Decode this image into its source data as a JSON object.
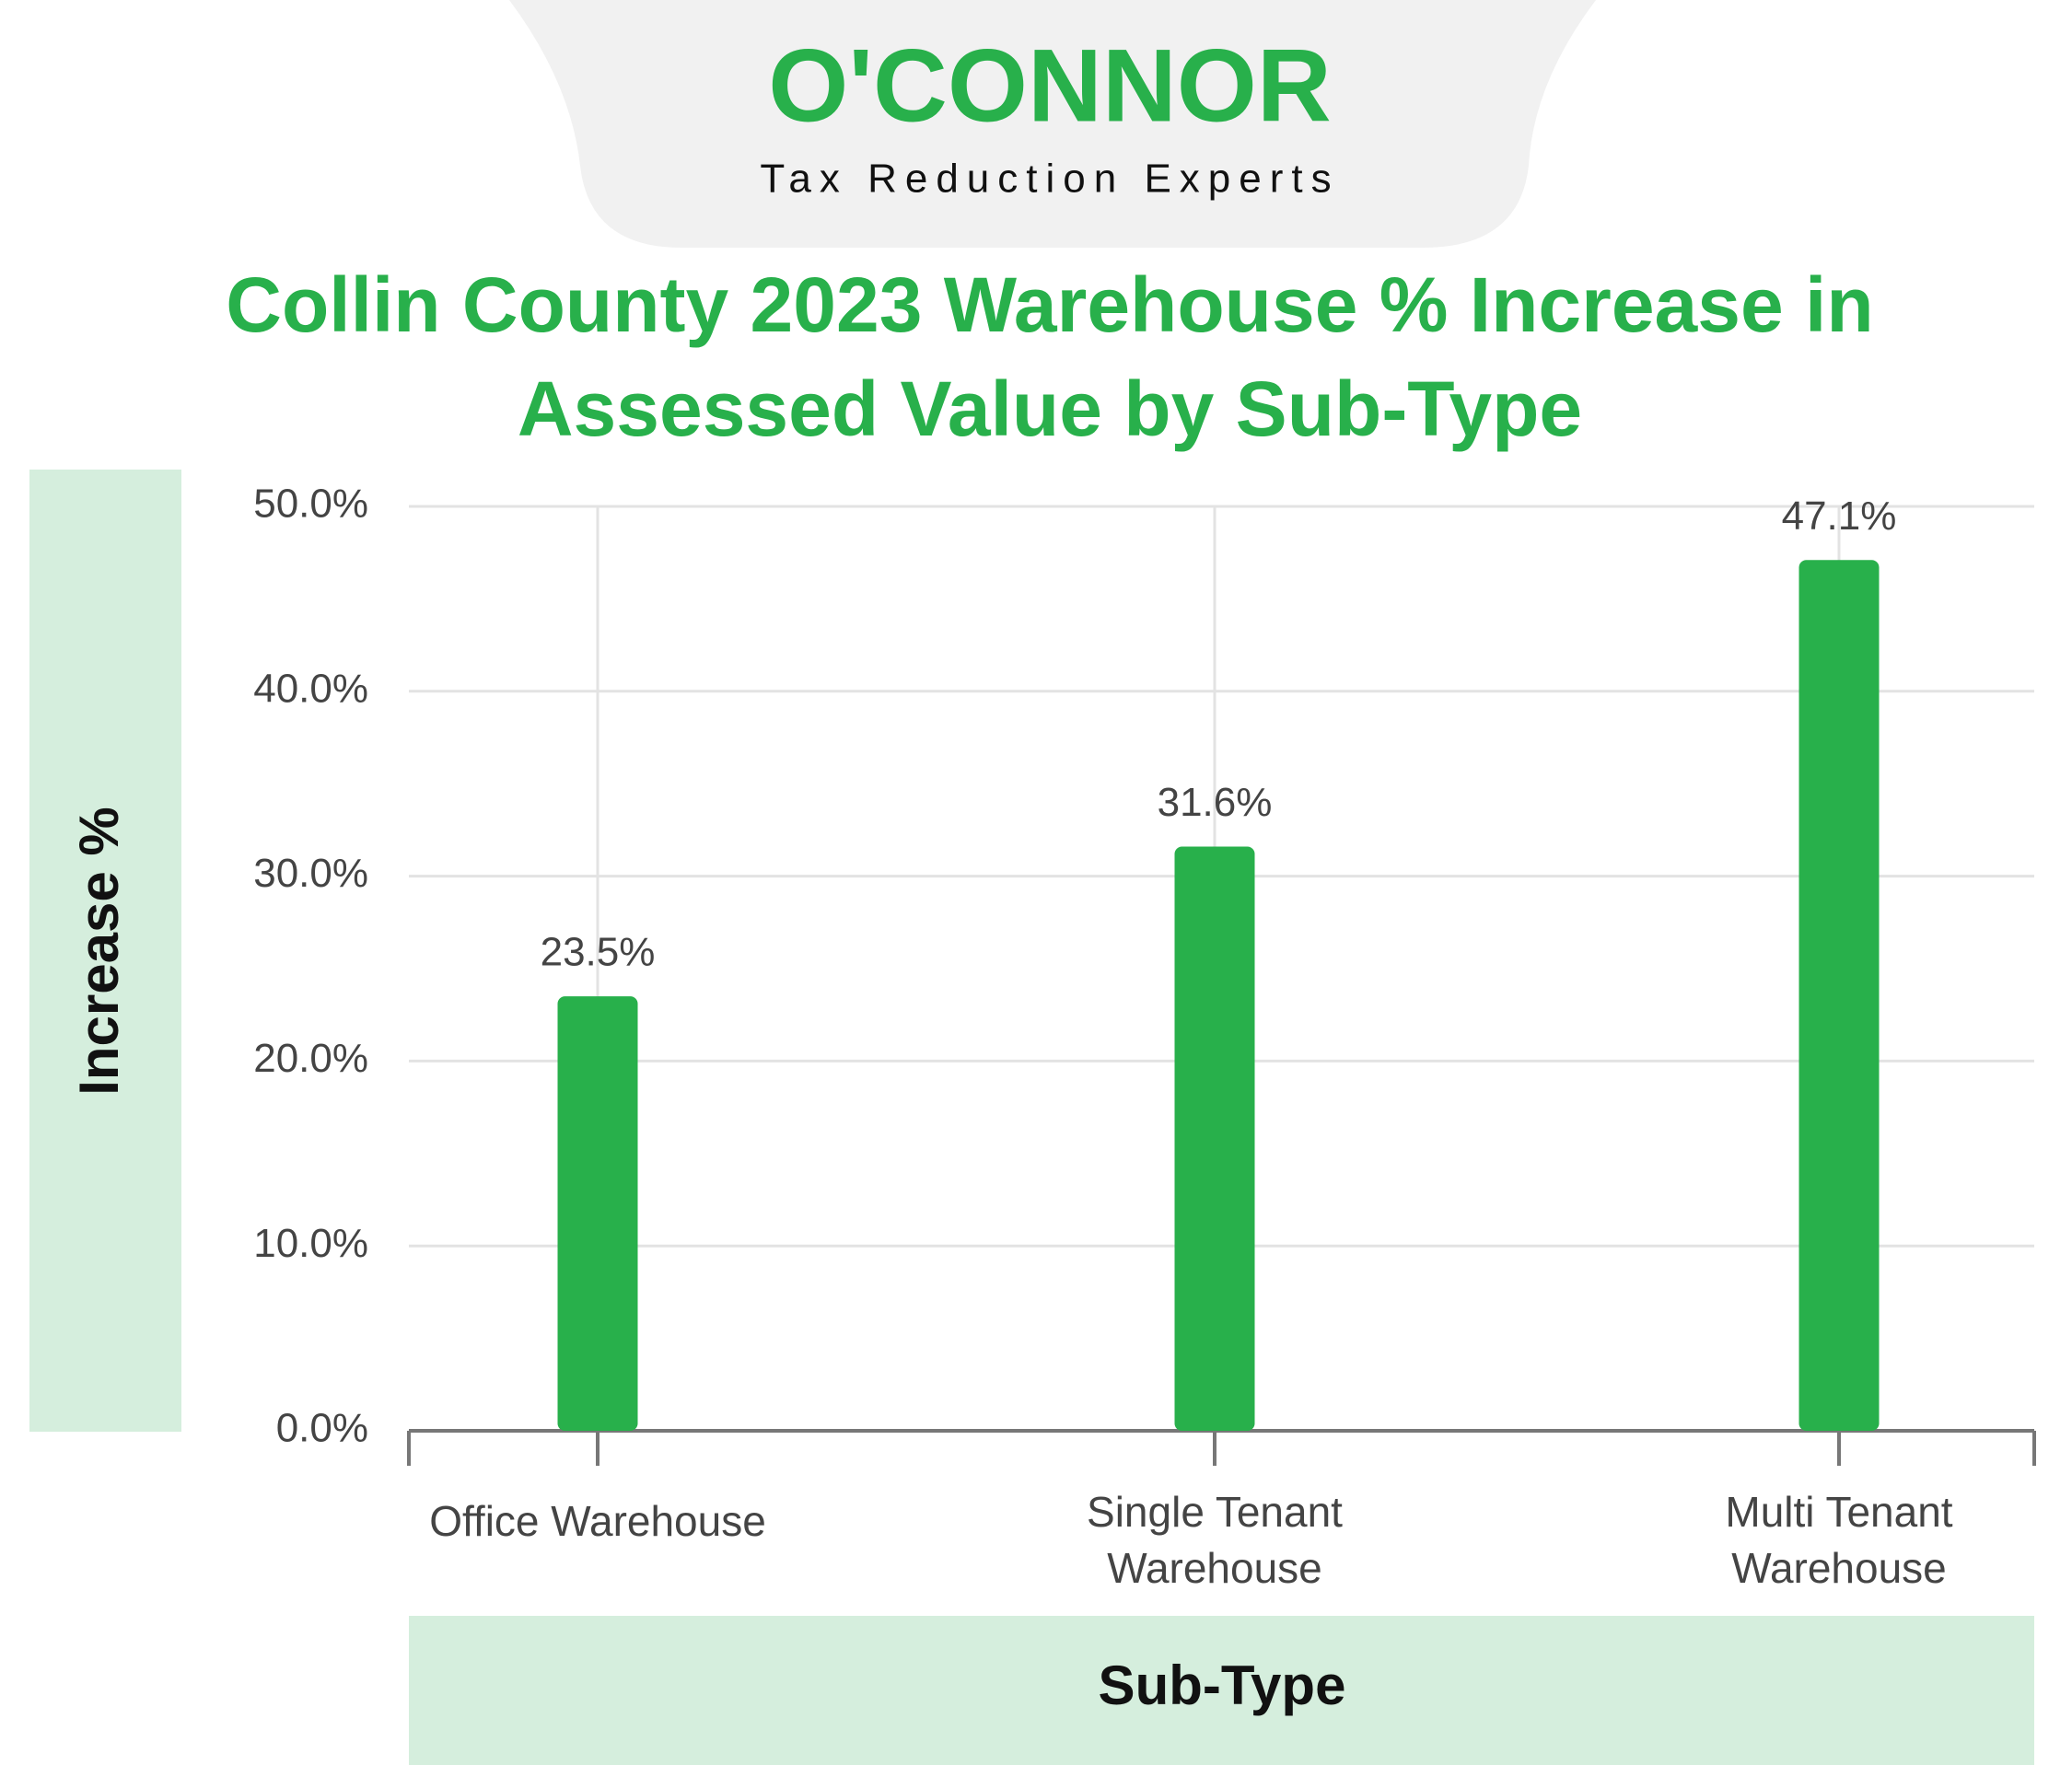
{
  "logo": {
    "name": "O'CONNOR",
    "tagline": "Tax Reduction Experts"
  },
  "chart_data": {
    "type": "bar",
    "title": "Collin County 2023 Warehouse % Increase in Assessed Value by Sub-Type",
    "x_label": "Sub-Type",
    "y_label": "Increase %",
    "categories": [
      "Office Warehouse",
      "Single Tenant Warehouse",
      "Multi Tenant Warehouse"
    ],
    "values": [
      23.5,
      31.6,
      47.1
    ],
    "value_labels": [
      "23.5%",
      "31.6%",
      "47.1%"
    ],
    "color": "#28b04b",
    "ylim": [
      0,
      50
    ],
    "yticks": [
      {
        "value": 0,
        "label": "0.0%"
      },
      {
        "value": 10,
        "label": "10.0%"
      },
      {
        "value": 20,
        "label": "20.0%"
      },
      {
        "value": 30,
        "label": "30.0%"
      },
      {
        "value": 40,
        "label": "40.0%"
      },
      {
        "value": 50,
        "label": "50.0%"
      }
    ],
    "grid": true
  }
}
